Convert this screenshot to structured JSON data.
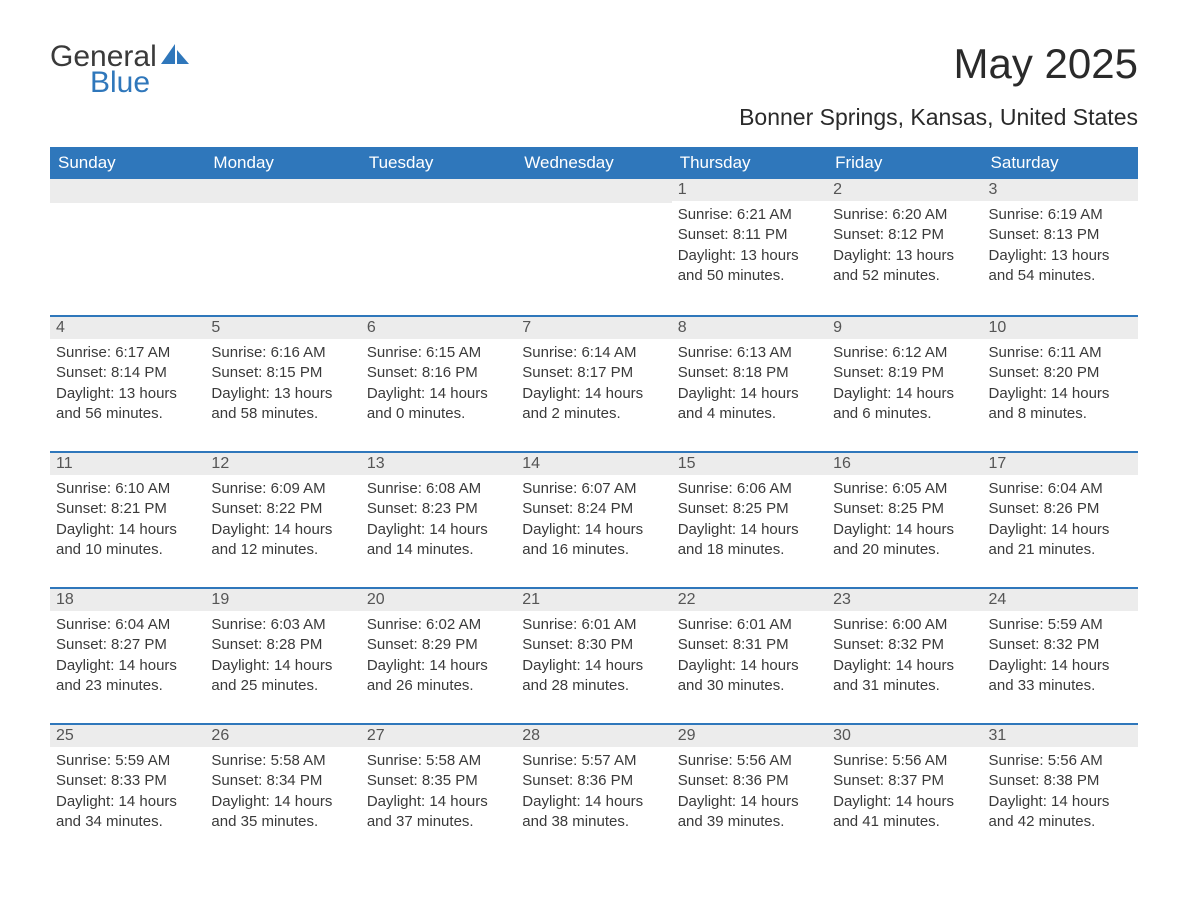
{
  "logo": {
    "text1": "General",
    "text2": "Blue",
    "icon_color": "#2f77bb"
  },
  "title": "May 2025",
  "subtitle": "Bonner Springs, Kansas, United States",
  "colors": {
    "header_bg": "#2f77bb",
    "header_text": "#ffffff",
    "day_header_bg": "#ececec",
    "day_border": "#2f77bb",
    "body_text": "#3a3a3a",
    "page_bg": "#ffffff"
  },
  "typography": {
    "title_fontsize": 42,
    "subtitle_fontsize": 23,
    "header_fontsize": 17,
    "body_fontsize": 15
  },
  "calendar": {
    "type": "table",
    "columns": [
      "Sunday",
      "Monday",
      "Tuesday",
      "Wednesday",
      "Thursday",
      "Friday",
      "Saturday"
    ],
    "weeks": [
      [
        null,
        null,
        null,
        null,
        {
          "n": "1",
          "sunrise": "6:21 AM",
          "sunset": "8:11 PM",
          "dl": "13 hours and 50 minutes."
        },
        {
          "n": "2",
          "sunrise": "6:20 AM",
          "sunset": "8:12 PM",
          "dl": "13 hours and 52 minutes."
        },
        {
          "n": "3",
          "sunrise": "6:19 AM",
          "sunset": "8:13 PM",
          "dl": "13 hours and 54 minutes."
        }
      ],
      [
        {
          "n": "4",
          "sunrise": "6:17 AM",
          "sunset": "8:14 PM",
          "dl": "13 hours and 56 minutes."
        },
        {
          "n": "5",
          "sunrise": "6:16 AM",
          "sunset": "8:15 PM",
          "dl": "13 hours and 58 minutes."
        },
        {
          "n": "6",
          "sunrise": "6:15 AM",
          "sunset": "8:16 PM",
          "dl": "14 hours and 0 minutes."
        },
        {
          "n": "7",
          "sunrise": "6:14 AM",
          "sunset": "8:17 PM",
          "dl": "14 hours and 2 minutes."
        },
        {
          "n": "8",
          "sunrise": "6:13 AM",
          "sunset": "8:18 PM",
          "dl": "14 hours and 4 minutes."
        },
        {
          "n": "9",
          "sunrise": "6:12 AM",
          "sunset": "8:19 PM",
          "dl": "14 hours and 6 minutes."
        },
        {
          "n": "10",
          "sunrise": "6:11 AM",
          "sunset": "8:20 PM",
          "dl": "14 hours and 8 minutes."
        }
      ],
      [
        {
          "n": "11",
          "sunrise": "6:10 AM",
          "sunset": "8:21 PM",
          "dl": "14 hours and 10 minutes."
        },
        {
          "n": "12",
          "sunrise": "6:09 AM",
          "sunset": "8:22 PM",
          "dl": "14 hours and 12 minutes."
        },
        {
          "n": "13",
          "sunrise": "6:08 AM",
          "sunset": "8:23 PM",
          "dl": "14 hours and 14 minutes."
        },
        {
          "n": "14",
          "sunrise": "6:07 AM",
          "sunset": "8:24 PM",
          "dl": "14 hours and 16 minutes."
        },
        {
          "n": "15",
          "sunrise": "6:06 AM",
          "sunset": "8:25 PM",
          "dl": "14 hours and 18 minutes."
        },
        {
          "n": "16",
          "sunrise": "6:05 AM",
          "sunset": "8:25 PM",
          "dl": "14 hours and 20 minutes."
        },
        {
          "n": "17",
          "sunrise": "6:04 AM",
          "sunset": "8:26 PM",
          "dl": "14 hours and 21 minutes."
        }
      ],
      [
        {
          "n": "18",
          "sunrise": "6:04 AM",
          "sunset": "8:27 PM",
          "dl": "14 hours and 23 minutes."
        },
        {
          "n": "19",
          "sunrise": "6:03 AM",
          "sunset": "8:28 PM",
          "dl": "14 hours and 25 minutes."
        },
        {
          "n": "20",
          "sunrise": "6:02 AM",
          "sunset": "8:29 PM",
          "dl": "14 hours and 26 minutes."
        },
        {
          "n": "21",
          "sunrise": "6:01 AM",
          "sunset": "8:30 PM",
          "dl": "14 hours and 28 minutes."
        },
        {
          "n": "22",
          "sunrise": "6:01 AM",
          "sunset": "8:31 PM",
          "dl": "14 hours and 30 minutes."
        },
        {
          "n": "23",
          "sunrise": "6:00 AM",
          "sunset": "8:32 PM",
          "dl": "14 hours and 31 minutes."
        },
        {
          "n": "24",
          "sunrise": "5:59 AM",
          "sunset": "8:32 PM",
          "dl": "14 hours and 33 minutes."
        }
      ],
      [
        {
          "n": "25",
          "sunrise": "5:59 AM",
          "sunset": "8:33 PM",
          "dl": "14 hours and 34 minutes."
        },
        {
          "n": "26",
          "sunrise": "5:58 AM",
          "sunset": "8:34 PM",
          "dl": "14 hours and 35 minutes."
        },
        {
          "n": "27",
          "sunrise": "5:58 AM",
          "sunset": "8:35 PM",
          "dl": "14 hours and 37 minutes."
        },
        {
          "n": "28",
          "sunrise": "5:57 AM",
          "sunset": "8:36 PM",
          "dl": "14 hours and 38 minutes."
        },
        {
          "n": "29",
          "sunrise": "5:56 AM",
          "sunset": "8:36 PM",
          "dl": "14 hours and 39 minutes."
        },
        {
          "n": "30",
          "sunrise": "5:56 AM",
          "sunset": "8:37 PM",
          "dl": "14 hours and 41 minutes."
        },
        {
          "n": "31",
          "sunrise": "5:56 AM",
          "sunset": "8:38 PM",
          "dl": "14 hours and 42 minutes."
        }
      ]
    ],
    "labels": {
      "sunrise": "Sunrise: ",
      "sunset": "Sunset: ",
      "daylight": "Daylight: "
    }
  }
}
